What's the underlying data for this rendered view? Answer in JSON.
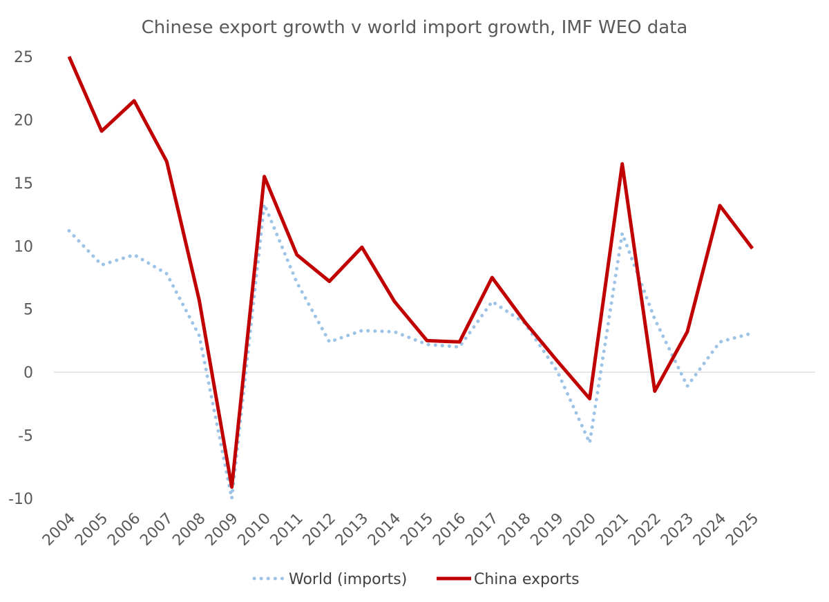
{
  "chart_data": {
    "type": "line",
    "title": "Chinese export growth v world import growth, IMF WEO data",
    "xlabel": "",
    "ylabel": "",
    "ylim": [
      -10,
      25
    ],
    "yticks": [
      25,
      20,
      15,
      10,
      5,
      0,
      -5,
      -10
    ],
    "categories": [
      "2004",
      "2005",
      "2006",
      "2007",
      "2008",
      "2009",
      "2010",
      "2011",
      "2012",
      "2013",
      "2014",
      "2015",
      "2016",
      "2017",
      "2018",
      "2019",
      "2020",
      "2021",
      "2022",
      "2023",
      "2024",
      "2025"
    ],
    "series": [
      {
        "name": "World (imports)",
        "style": "dotted",
        "color": "#9DC3E6",
        "values": [
          11.2,
          8.5,
          9.3,
          7.8,
          2.9,
          -10.0,
          13.3,
          7.1,
          2.4,
          3.3,
          3.2,
          2.2,
          2.0,
          5.6,
          3.9,
          0.1,
          -5.6,
          11.0,
          4.2,
          -1.1,
          2.4,
          3.1
        ]
      },
      {
        "name": "China exports",
        "style": "solid",
        "color": "#C00000",
        "values": [
          25.0,
          19.1,
          21.5,
          16.7,
          5.7,
          -9.1,
          15.5,
          9.3,
          7.2,
          9.9,
          5.6,
          2.5,
          2.4,
          7.5,
          4.0,
          0.9,
          -2.1,
          16.5,
          -1.5,
          3.2,
          13.2,
          9.8
        ]
      }
    ],
    "legend_position": "bottom"
  }
}
